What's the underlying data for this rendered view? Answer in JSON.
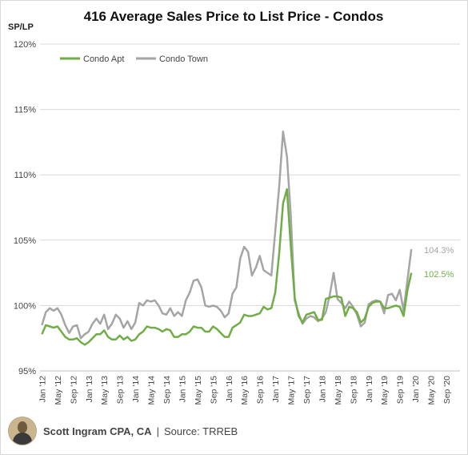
{
  "chart_data": {
    "type": "line",
    "title": "416 Average Sales Price to List Price - Condos",
    "ylabel": "SP/LP",
    "xlabel": "",
    "ylim": [
      95,
      120
    ],
    "y_ticks": [
      "95%",
      "100%",
      "105%",
      "110%",
      "115%",
      "120%"
    ],
    "x_ticks": [
      "Jan '12",
      "May '12",
      "Sep '12",
      "Jan '13",
      "May '13",
      "Sep '13",
      "Jan '14",
      "May '14",
      "Sep '14",
      "Jan '15",
      "May '15",
      "Sep '15",
      "Jan '16",
      "May '16",
      "Sep '16",
      "Jan '17",
      "May '17",
      "Sep '17",
      "Jan '18",
      "May '18",
      "Sep '18",
      "Jan '19",
      "May '19",
      "Sep '19",
      "Jan '20",
      "May '20",
      "Sep '20"
    ],
    "grid": "horizontal",
    "legend_position": "top-left",
    "series": [
      {
        "name": "Condo Apt",
        "color": "#70ad47",
        "end_label": "102.5%",
        "values": [
          97.8,
          98.5,
          98.4,
          98.3,
          98.4,
          98.0,
          97.6,
          97.4,
          97.4,
          97.5,
          97.2,
          97.0,
          97.2,
          97.5,
          97.8,
          97.8,
          98.1,
          97.6,
          97.4,
          97.4,
          97.7,
          97.4,
          97.6,
          97.3,
          97.4,
          97.8,
          98.0,
          98.4,
          98.3,
          98.3,
          98.2,
          98.0,
          98.2,
          98.1,
          97.6,
          97.6,
          97.8,
          97.8,
          98.0,
          98.4,
          98.3,
          98.3,
          98.0,
          98.0,
          98.4,
          98.2,
          97.9,
          97.6,
          97.6,
          98.3,
          98.5,
          98.7,
          99.3,
          99.2,
          99.2,
          99.3,
          99.4,
          99.9,
          99.7,
          99.8,
          101.0,
          104.0,
          107.8,
          108.9,
          104.5,
          100.6,
          99.2,
          98.7,
          99.3,
          99.4,
          99.5,
          98.9,
          98.9,
          100.5,
          100.6,
          100.7,
          100.7,
          100.6,
          99.2,
          99.9,
          99.8,
          99.5,
          98.7,
          99.0,
          99.9,
          100.2,
          100.3,
          100.3,
          99.8,
          99.8,
          99.9,
          100.0,
          99.9,
          99.2,
          101.2,
          102.5
        ]
      },
      {
        "name": "Condo Town",
        "color": "#a5a5a5",
        "end_label": "104.3%",
        "values": [
          98.5,
          99.5,
          99.8,
          99.6,
          99.8,
          99.3,
          98.5,
          97.9,
          98.4,
          98.5,
          97.5,
          97.8,
          98.0,
          98.6,
          99.0,
          98.6,
          99.3,
          98.2,
          98.6,
          99.3,
          99.0,
          98.3,
          98.8,
          98.2,
          98.7,
          100.2,
          100.0,
          100.4,
          100.3,
          100.4,
          100.0,
          99.4,
          99.3,
          99.8,
          99.2,
          99.5,
          99.2,
          100.4,
          101.0,
          101.9,
          102.0,
          101.4,
          100.0,
          99.9,
          100.0,
          99.9,
          99.6,
          99.1,
          99.4,
          100.9,
          101.4,
          103.6,
          104.5,
          104.1,
          102.3,
          102.9,
          103.8,
          102.7,
          102.5,
          102.3,
          105.7,
          109.1,
          113.3,
          111.4,
          106.9,
          100.4,
          99.4,
          98.6,
          99.0,
          99.2,
          99.1,
          98.8,
          99.0,
          99.5,
          100.8,
          102.5,
          100.5,
          100.2,
          99.8,
          100.3,
          99.9,
          99.3,
          98.4,
          98.7,
          100.1,
          100.3,
          100.4,
          100.3,
          99.4,
          100.8,
          100.9,
          100.4,
          101.2,
          99.6,
          102.0,
          104.3
        ]
      }
    ]
  },
  "footer": {
    "name": "Scott Ingram CPA, CA",
    "separator": "|",
    "source": "Source: TRREB"
  }
}
